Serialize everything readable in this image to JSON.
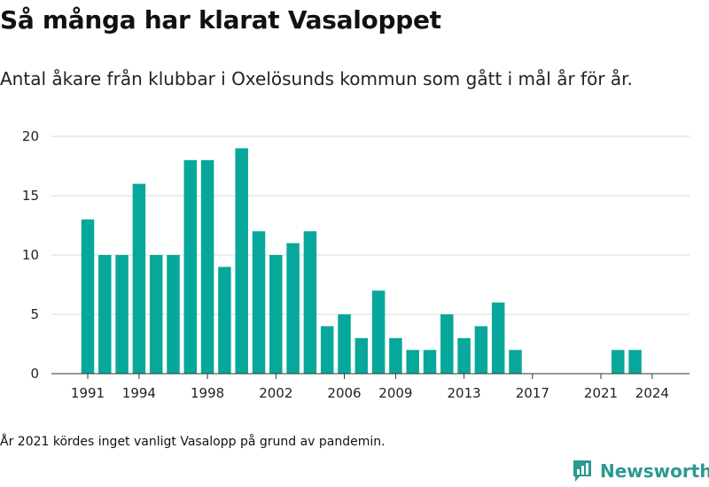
{
  "title": "Så många har klarat Vasaloppet",
  "subtitle": "Antal åkare från klubbar i Oxelösunds kommun som gått i mål år för år.",
  "note": "År 2021 kördes inget vanligt Vasalopp på grund av pandemin.",
  "brand": {
    "name": "Newsworthy",
    "icon": "newsworthy-logo-icon"
  },
  "colors": {
    "bar": "#07a89b",
    "grid": "#d9d9d9",
    "axis": "#333333",
    "brand": "#2a9a92"
  },
  "chart_data": {
    "type": "bar",
    "title": "Så många har klarat Vasaloppet",
    "subtitle": "Antal åkare från klubbar i Oxelösunds kommun som gått i mål år för år.",
    "xlabel": "",
    "ylabel": "",
    "ylim": [
      0,
      20
    ],
    "yticks": [
      0,
      5,
      10,
      15,
      20
    ],
    "xticks": [
      1991,
      1994,
      1998,
      2002,
      2006,
      2009,
      2013,
      2017,
      2021,
      2024
    ],
    "grid": true,
    "legend": "none",
    "x": [
      1991,
      1992,
      1993,
      1994,
      1995,
      1996,
      1997,
      1998,
      1999,
      2000,
      2001,
      2002,
      2003,
      2004,
      2005,
      2006,
      2007,
      2008,
      2009,
      2010,
      2011,
      2012,
      2013,
      2014,
      2015,
      2016,
      2017,
      2018,
      2019,
      2020,
      2021,
      2022,
      2023,
      2024
    ],
    "values": [
      13,
      10,
      10,
      16,
      10,
      10,
      18,
      18,
      9,
      19,
      12,
      10,
      11,
      12,
      4,
      5,
      3,
      7,
      3,
      2,
      2,
      5,
      3,
      4,
      6,
      2,
      0,
      0,
      0,
      0,
      0,
      2,
      2,
      0
    ]
  }
}
